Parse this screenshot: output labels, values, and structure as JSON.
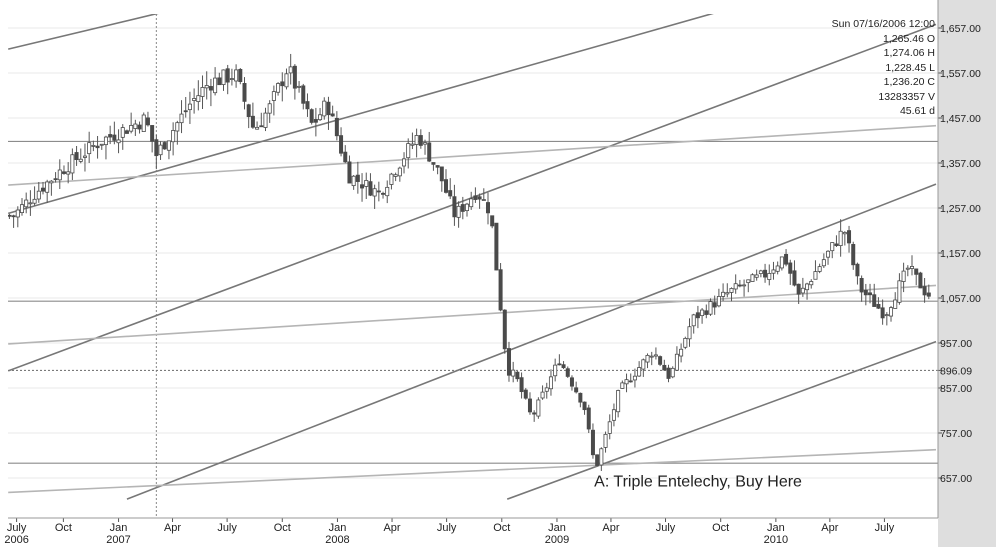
{
  "readout": {
    "datetime": "Sun 07/16/2006 12:00",
    "open": "1,265.46 O",
    "high": "1,274.06 H",
    "low": "1,228.45 L",
    "close": "1,236.20 C",
    "volume": "13283357 V",
    "days": "45.61 d"
  },
  "chart_data": {
    "type": "candlestick",
    "title": "",
    "xlabel": "",
    "ylabel": "",
    "x_range": [
      "2006-07",
      "2010-09"
    ],
    "ylim": [
      610,
      1700
    ],
    "grid": true,
    "y_ticks": [
      657,
      757,
      857,
      896.09,
      957,
      1057,
      1157,
      1257,
      1357,
      1457,
      1557,
      1657
    ],
    "y_tick_labels": [
      "657.00",
      "757.00",
      "857.00",
      "896.09",
      "957.00",
      "1,057.00",
      "1,157.00",
      "1,257.00",
      "1,357.00",
      "1,457.00",
      "1,557.00",
      "1,657.00"
    ],
    "x_ticks": [
      {
        "date": "2006-07-15",
        "label": "July",
        "year": "2006"
      },
      {
        "date": "2006-10-01",
        "label": "Oct",
        "year": ""
      },
      {
        "date": "2007-01-01",
        "label": "Jan",
        "year": "2007"
      },
      {
        "date": "2007-04-01",
        "label": "Apr",
        "year": ""
      },
      {
        "date": "2007-07-01",
        "label": "July",
        "year": ""
      },
      {
        "date": "2007-10-01",
        "label": "Oct",
        "year": ""
      },
      {
        "date": "2008-01-01",
        "label": "Jan",
        "year": "2008"
      },
      {
        "date": "2008-04-01",
        "label": "Apr",
        "year": ""
      },
      {
        "date": "2008-07-01",
        "label": "July",
        "year": ""
      },
      {
        "date": "2008-10-01",
        "label": "Oct",
        "year": ""
      },
      {
        "date": "2009-01-01",
        "label": "Jan",
        "year": "2009"
      },
      {
        "date": "2009-04-01",
        "label": "Apr",
        "year": ""
      },
      {
        "date": "2009-07-01",
        "label": "July",
        "year": ""
      },
      {
        "date": "2009-10-01",
        "label": "Oct",
        "year": ""
      },
      {
        "date": "2010-01-01",
        "label": "Jan",
        "year": "2010"
      },
      {
        "date": "2010-04-01",
        "label": "Apr",
        "year": ""
      },
      {
        "date": "2010-07-01",
        "label": "July",
        "year": ""
      }
    ],
    "cursor_date": "2007-03-05",
    "horizontal_levels": [
      {
        "value": 1405,
        "color": "#8c8c8c"
      },
      {
        "value": 1050,
        "color": "#8c8c8c"
      },
      {
        "value": 896.09,
        "color": "#7a7a7a",
        "dotted": true
      },
      {
        "value": 690,
        "color": "#8c8c8c"
      }
    ],
    "trend_lines": [
      {
        "from": [
          "2006-07-01",
          1750
        ],
        "to": [
          "2007-04-15",
          1880
        ],
        "color": "#777777"
      },
      {
        "from": [
          "2006-07-01",
          1610
        ],
        "to": [
          "2007-10-15",
          1760
        ],
        "color": "#777777"
      },
      {
        "from": [
          "2006-07-01",
          1245
        ],
        "to": [
          "2010-09-25",
          1830
        ],
        "color": "#777777"
      },
      {
        "from": [
          "2006-07-01",
          895
        ],
        "to": [
          "2010-09-25",
          1665
        ],
        "color": "#777777"
      },
      {
        "from": [
          "2007-01-15",
          610
        ],
        "to": [
          "2010-09-25",
          1310
        ],
        "color": "#777777"
      },
      {
        "from": [
          "2008-10-10",
          610
        ],
        "to": [
          "2010-09-25",
          960
        ],
        "color": "#777777"
      },
      {
        "from": [
          "2006-07-01",
          1308
        ],
        "to": [
          "2010-09-25",
          1440
        ],
        "color": "#b5b5b5"
      },
      {
        "from": [
          "2006-07-01",
          955
        ],
        "to": [
          "2010-09-25",
          1085
        ],
        "color": "#b5b5b5"
      },
      {
        "from": [
          "2006-07-01",
          625
        ],
        "to": [
          "2010-09-25",
          720
        ],
        "color": "#b5b5b5"
      }
    ],
    "weekly_close_anchors": [
      [
        "2006-07-10",
        1240
      ],
      [
        "2006-08-15",
        1290
      ],
      [
        "2006-10-01",
        1345
      ],
      [
        "2006-12-01",
        1405
      ],
      [
        "2007-02-15",
        1455
      ],
      [
        "2007-03-05",
        1375
      ],
      [
        "2007-05-01",
        1490
      ],
      [
        "2007-06-01",
        1535
      ],
      [
        "2007-07-15",
        1555
      ],
      [
        "2007-08-15",
        1430
      ],
      [
        "2007-09-10",
        1480
      ],
      [
        "2007-10-10",
        1570
      ],
      [
        "2007-11-20",
        1440
      ],
      [
        "2007-12-15",
        1490
      ],
      [
        "2008-01-20",
        1330
      ],
      [
        "2008-03-10",
        1290
      ],
      [
        "2008-05-15",
        1420
      ],
      [
        "2008-06-20",
        1330
      ],
      [
        "2008-07-15",
        1240
      ],
      [
        "2008-08-20",
        1295
      ],
      [
        "2008-09-12",
        1250
      ],
      [
        "2008-10-10",
        900
      ],
      [
        "2008-10-25",
        880
      ],
      [
        "2008-11-20",
        790
      ],
      [
        "2009-01-05",
        920
      ],
      [
        "2009-02-15",
        820
      ],
      [
        "2009-03-06",
        676
      ],
      [
        "2009-04-15",
        850
      ],
      [
        "2009-06-10",
        940
      ],
      [
        "2009-07-08",
        880
      ],
      [
        "2009-08-15",
        1010
      ],
      [
        "2009-10-15",
        1070
      ],
      [
        "2009-12-15",
        1110
      ],
      [
        "2010-01-15",
        1150
      ],
      [
        "2010-02-08",
        1060
      ],
      [
        "2010-04-25",
        1210
      ],
      [
        "2010-05-20",
        1080
      ],
      [
        "2010-07-02",
        1020
      ],
      [
        "2010-08-10",
        1125
      ],
      [
        "2010-09-10",
        1065
      ]
    ],
    "annotations": [
      {
        "text": "A: Triple Entelechy, Buy Here",
        "date": "2009-03-09",
        "value": 676
      }
    ]
  }
}
